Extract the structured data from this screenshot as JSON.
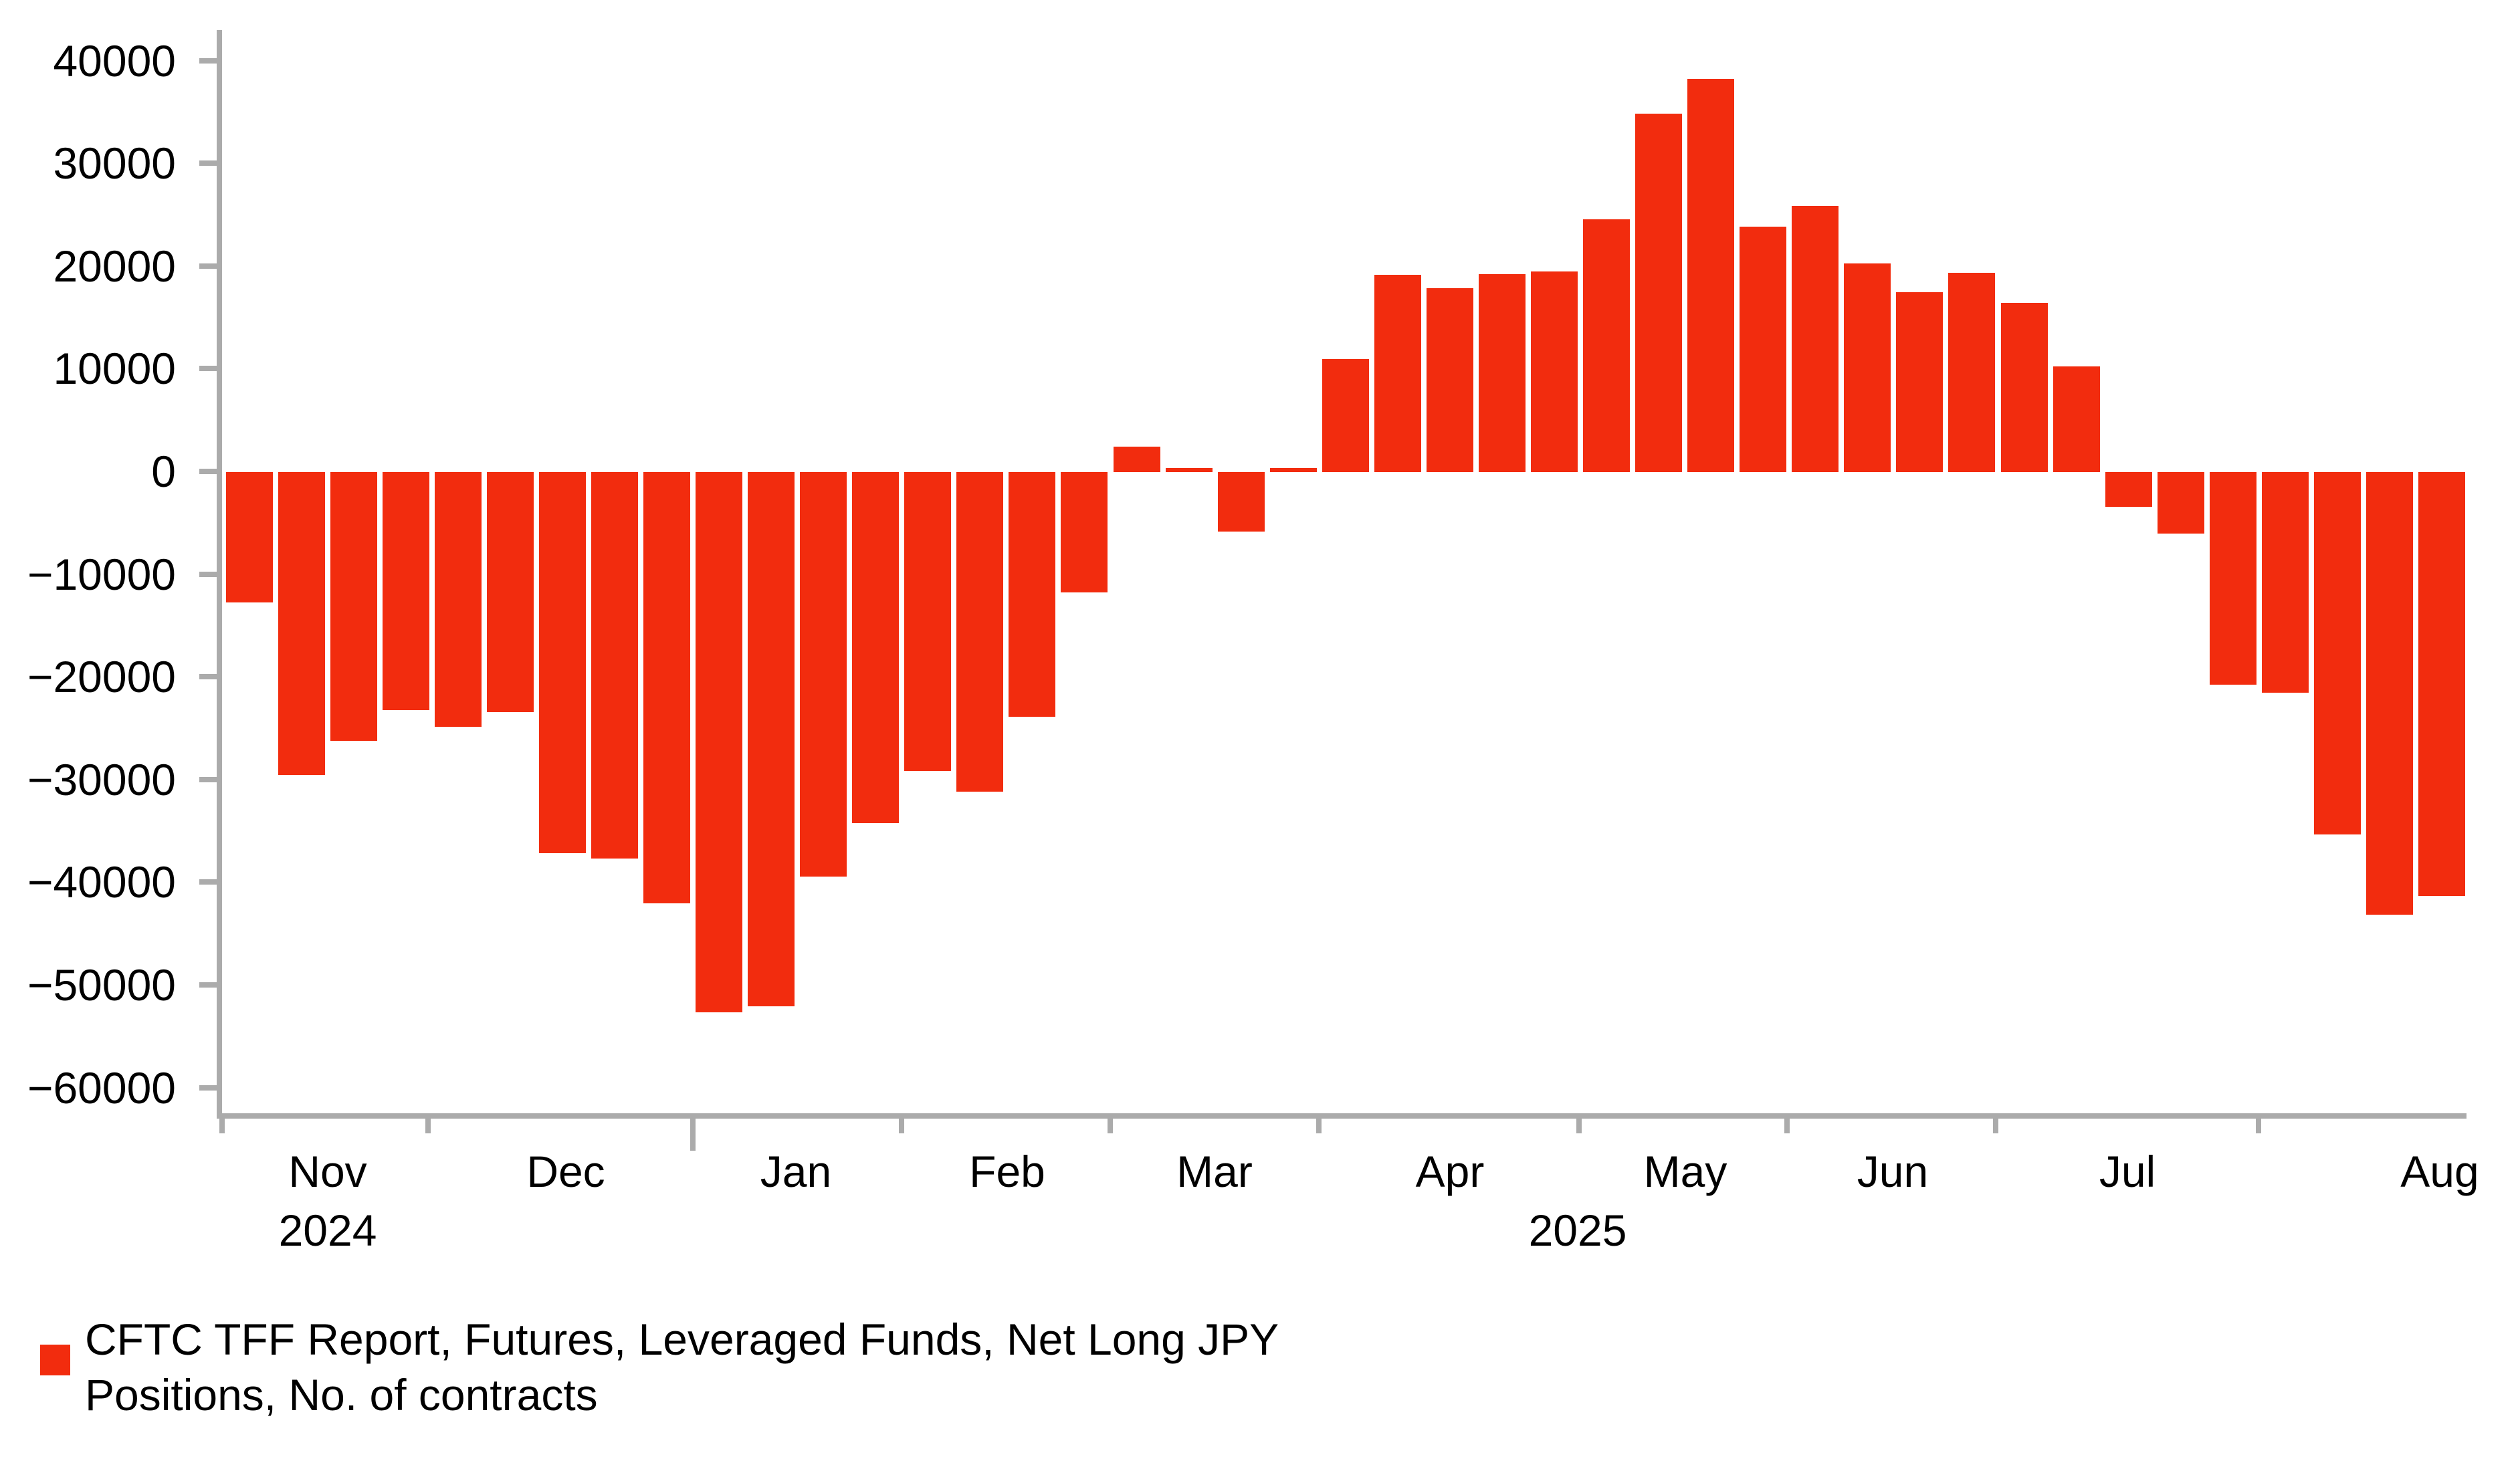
{
  "chart_data": {
    "type": "bar",
    "title": "",
    "series": [
      {
        "name": "CFTC TFF Report, Futures, Leveraged Funds, Net Long JPY Positions, No. of contracts",
        "values": [
          -12700,
          -29500,
          -26200,
          -23200,
          -24800,
          -23400,
          -37100,
          -37600,
          -42000,
          -52600,
          -52000,
          -39400,
          -34200,
          -29100,
          -31100,
          -23800,
          -11700,
          2500,
          400,
          -5800,
          400,
          11000,
          19200,
          17900,
          19300,
          19500,
          24600,
          34900,
          38300,
          23900,
          25900,
          20300,
          17500,
          19400,
          16500,
          10300,
          -3400,
          -6000,
          -20700,
          -21500,
          -35300,
          -43100,
          -41300
        ]
      }
    ],
    "frequency": "weekly",
    "xlabel": "",
    "ylabel": "",
    "ylim": [
      -60000,
      40000
    ],
    "ytick_step": 10000,
    "ytick_labels": [
      "40000",
      "30000",
      "20000",
      "10000",
      "0",
      "−10000",
      "−20000",
      "−30000",
      "−40000",
      "−50000",
      "−60000"
    ],
    "grid": false,
    "legend_position": "bottom-left",
    "bar_color": "#f22c0e",
    "axis_color": "#ababab",
    "text_color": "#000000",
    "x_axis": {
      "months": [
        {
          "label": "Nov",
          "weeks": 4
        },
        {
          "label": "Dec",
          "weeks": 5
        },
        {
          "label": "Jan",
          "weeks": 4
        },
        {
          "label": "Feb",
          "weeks": 4
        },
        {
          "label": "Mar",
          "weeks": 4
        },
        {
          "label": "Apr",
          "weeks": 5
        },
        {
          "label": "May",
          "weeks": 4
        },
        {
          "label": "Jun",
          "weeks": 4
        },
        {
          "label": "Jul",
          "weeks": 5
        },
        {
          "label": "Aug",
          "weeks": 4
        }
      ],
      "year_labels": [
        {
          "label": "2024",
          "anchor_month": "Nov"
        },
        {
          "label": "2025",
          "anchor_month": "Apr|May boundary"
        }
      ]
    }
  },
  "legend": {
    "line1": "CFTC TFF Report, Futures, Leveraged Funds, Net Long JPY",
    "line2": "Positions, No. of contracts",
    "swatch_color": "#f22c0e"
  }
}
